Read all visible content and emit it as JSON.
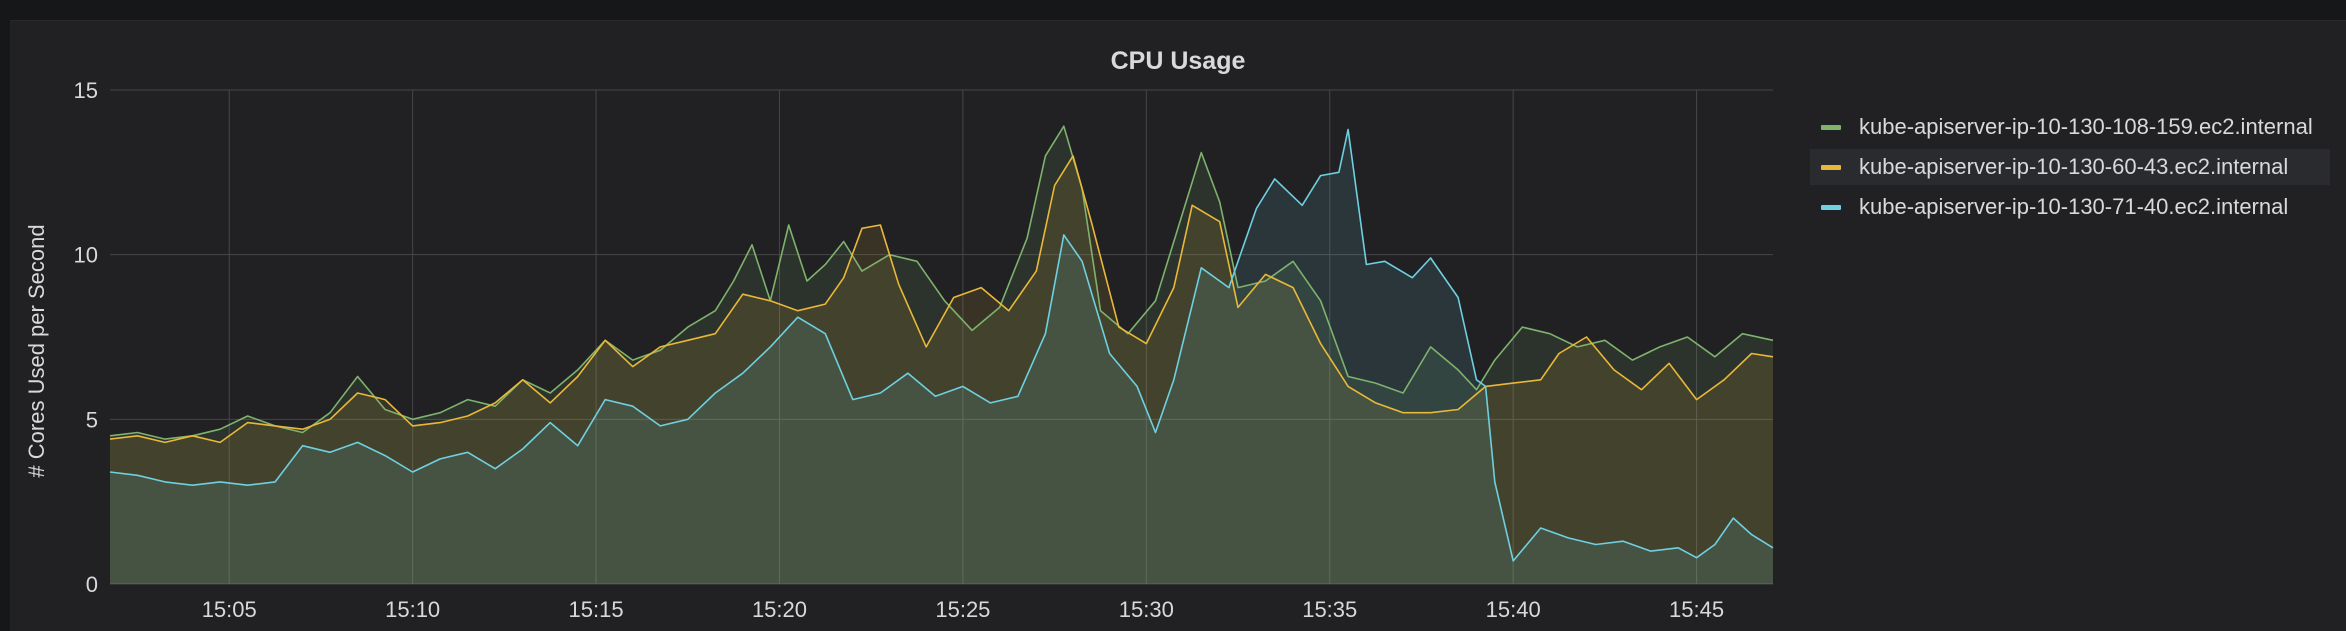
{
  "panel": {
    "title": "CPU Usage"
  },
  "colors": {
    "background": "#212124",
    "grid": "#464649",
    "text": "#d8d9da"
  },
  "chart_data": {
    "type": "area",
    "title": "CPU Usage",
    "xlabel": "",
    "ylabel": "# Cores Used per Second",
    "ylim": [
      0,
      15
    ],
    "yticks": [
      0,
      5,
      10,
      15
    ],
    "xlim": [
      "15:01:45",
      "15:47:05"
    ],
    "xticks": [
      "15:05",
      "15:10",
      "15:15",
      "15:20",
      "15:25",
      "15:30",
      "15:35",
      "15:40",
      "15:45"
    ],
    "grid": true,
    "legend_position": "right",
    "series": [
      {
        "name": "kube-apiserver-ip-10-130-108-159.ec2.internal",
        "color": "#7eb26d",
        "fill": "rgba(126,178,109,0.12)",
        "points": [
          [
            "15:01:45",
            4.5
          ],
          [
            "15:02:30",
            4.6
          ],
          [
            "15:03:15",
            4.4
          ],
          [
            "15:04:00",
            4.5
          ],
          [
            "15:04:45",
            4.7
          ],
          [
            "15:05:30",
            5.1
          ],
          [
            "15:06:15",
            4.8
          ],
          [
            "15:07:00",
            4.6
          ],
          [
            "15:07:45",
            5.2
          ],
          [
            "15:08:30",
            6.3
          ],
          [
            "15:09:15",
            5.3
          ],
          [
            "15:10:00",
            5.0
          ],
          [
            "15:10:45",
            5.2
          ],
          [
            "15:11:30",
            5.6
          ],
          [
            "15:12:15",
            5.4
          ],
          [
            "15:13:00",
            6.2
          ],
          [
            "15:13:45",
            5.8
          ],
          [
            "15:14:30",
            6.5
          ],
          [
            "15:15:15",
            7.4
          ],
          [
            "15:16:00",
            6.8
          ],
          [
            "15:16:45",
            7.1
          ],
          [
            "15:17:30",
            7.8
          ],
          [
            "15:18:15",
            8.3
          ],
          [
            "15:18:45",
            9.2
          ],
          [
            "15:19:15",
            10.3
          ],
          [
            "15:19:45",
            8.6
          ],
          [
            "15:20:15",
            10.9
          ],
          [
            "15:20:45",
            9.2
          ],
          [
            "15:21:15",
            9.7
          ],
          [
            "15:21:45",
            10.4
          ],
          [
            "15:22:15",
            9.5
          ],
          [
            "15:23:00",
            10.0
          ],
          [
            "15:23:45",
            9.8
          ],
          [
            "15:24:30",
            8.6
          ],
          [
            "15:25:15",
            7.7
          ],
          [
            "15:26:00",
            8.4
          ],
          [
            "15:26:45",
            10.5
          ],
          [
            "15:27:15",
            13.0
          ],
          [
            "15:27:45",
            13.9
          ],
          [
            "15:28:15",
            12.0
          ],
          [
            "15:28:45",
            8.3
          ],
          [
            "15:29:30",
            7.6
          ],
          [
            "15:30:15",
            8.6
          ],
          [
            "15:31:00",
            11.3
          ],
          [
            "15:31:30",
            13.1
          ],
          [
            "15:32:00",
            11.6
          ],
          [
            "15:32:30",
            9.0
          ],
          [
            "15:33:15",
            9.2
          ],
          [
            "15:34:00",
            9.8
          ],
          [
            "15:34:45",
            8.6
          ],
          [
            "15:35:30",
            6.3
          ],
          [
            "15:36:15",
            6.1
          ],
          [
            "15:37:00",
            5.8
          ],
          [
            "15:37:45",
            7.2
          ],
          [
            "15:38:30",
            6.5
          ],
          [
            "15:39:00",
            5.9
          ],
          [
            "15:39:30",
            6.8
          ],
          [
            "15:40:15",
            7.8
          ],
          [
            "15:41:00",
            7.6
          ],
          [
            "15:41:45",
            7.2
          ],
          [
            "15:42:30",
            7.4
          ],
          [
            "15:43:15",
            6.8
          ],
          [
            "15:44:00",
            7.2
          ],
          [
            "15:44:45",
            7.5
          ],
          [
            "15:45:30",
            6.9
          ],
          [
            "15:46:15",
            7.6
          ],
          [
            "15:47:05",
            7.4
          ]
        ]
      },
      {
        "name": "kube-apiserver-ip-10-130-60-43.ec2.internal",
        "color": "#eab839",
        "fill": "rgba(234,184,57,0.12)",
        "points": [
          [
            "15:01:45",
            4.4
          ],
          [
            "15:02:30",
            4.5
          ],
          [
            "15:03:15",
            4.3
          ],
          [
            "15:04:00",
            4.5
          ],
          [
            "15:04:45",
            4.3
          ],
          [
            "15:05:30",
            4.9
          ],
          [
            "15:06:15",
            4.8
          ],
          [
            "15:07:00",
            4.7
          ],
          [
            "15:07:45",
            5.0
          ],
          [
            "15:08:30",
            5.8
          ],
          [
            "15:09:15",
            5.6
          ],
          [
            "15:10:00",
            4.8
          ],
          [
            "15:10:45",
            4.9
          ],
          [
            "15:11:30",
            5.1
          ],
          [
            "15:12:15",
            5.5
          ],
          [
            "15:13:00",
            6.2
          ],
          [
            "15:13:45",
            5.5
          ],
          [
            "15:14:30",
            6.3
          ],
          [
            "15:15:15",
            7.4
          ],
          [
            "15:16:00",
            6.6
          ],
          [
            "15:16:45",
            7.2
          ],
          [
            "15:17:30",
            7.4
          ],
          [
            "15:18:15",
            7.6
          ],
          [
            "15:19:00",
            8.8
          ],
          [
            "15:19:45",
            8.6
          ],
          [
            "15:20:30",
            8.3
          ],
          [
            "15:21:15",
            8.5
          ],
          [
            "15:21:45",
            9.3
          ],
          [
            "15:22:15",
            10.8
          ],
          [
            "15:22:45",
            10.9
          ],
          [
            "15:23:15",
            9.1
          ],
          [
            "15:24:00",
            7.2
          ],
          [
            "15:24:45",
            8.7
          ],
          [
            "15:25:30",
            9.0
          ],
          [
            "15:26:15",
            8.3
          ],
          [
            "15:27:00",
            9.5
          ],
          [
            "15:27:30",
            12.1
          ],
          [
            "15:28:00",
            13.0
          ],
          [
            "15:28:30",
            11.0
          ],
          [
            "15:29:15",
            7.8
          ],
          [
            "15:30:00",
            7.3
          ],
          [
            "15:30:45",
            9.0
          ],
          [
            "15:31:15",
            11.5
          ],
          [
            "15:32:00",
            11.0
          ],
          [
            "15:32:30",
            8.4
          ],
          [
            "15:33:15",
            9.4
          ],
          [
            "15:34:00",
            9.0
          ],
          [
            "15:34:45",
            7.3
          ],
          [
            "15:35:30",
            6.0
          ],
          [
            "15:36:15",
            5.5
          ],
          [
            "15:37:00",
            5.2
          ],
          [
            "15:37:45",
            5.2
          ],
          [
            "15:38:30",
            5.3
          ],
          [
            "15:39:15",
            6.0
          ],
          [
            "15:40:00",
            6.1
          ],
          [
            "15:40:45",
            6.2
          ],
          [
            "15:41:15",
            7.0
          ],
          [
            "15:42:00",
            7.5
          ],
          [
            "15:42:45",
            6.5
          ],
          [
            "15:43:30",
            5.9
          ],
          [
            "15:44:15",
            6.7
          ],
          [
            "15:45:00",
            5.6
          ],
          [
            "15:45:45",
            6.2
          ],
          [
            "15:46:30",
            7.0
          ],
          [
            "15:47:05",
            6.9
          ]
        ]
      },
      {
        "name": "kube-apiserver-ip-10-130-71-40.ec2.internal",
        "color": "#6ed0e0",
        "fill": "rgba(110,208,224,0.12)",
        "points": [
          [
            "15:01:45",
            3.4
          ],
          [
            "15:02:30",
            3.3
          ],
          [
            "15:03:15",
            3.1
          ],
          [
            "15:04:00",
            3.0
          ],
          [
            "15:04:45",
            3.1
          ],
          [
            "15:05:30",
            3.0
          ],
          [
            "15:06:15",
            3.1
          ],
          [
            "15:07:00",
            4.2
          ],
          [
            "15:07:45",
            4.0
          ],
          [
            "15:08:30",
            4.3
          ],
          [
            "15:09:15",
            3.9
          ],
          [
            "15:10:00",
            3.4
          ],
          [
            "15:10:45",
            3.8
          ],
          [
            "15:11:30",
            4.0
          ],
          [
            "15:12:15",
            3.5
          ],
          [
            "15:13:00",
            4.1
          ],
          [
            "15:13:45",
            4.9
          ],
          [
            "15:14:30",
            4.2
          ],
          [
            "15:15:15",
            5.6
          ],
          [
            "15:16:00",
            5.4
          ],
          [
            "15:16:45",
            4.8
          ],
          [
            "15:17:30",
            5.0
          ],
          [
            "15:18:15",
            5.8
          ],
          [
            "15:19:00",
            6.4
          ],
          [
            "15:19:45",
            7.2
          ],
          [
            "15:20:30",
            8.1
          ],
          [
            "15:21:15",
            7.6
          ],
          [
            "15:22:00",
            5.6
          ],
          [
            "15:22:45",
            5.8
          ],
          [
            "15:23:30",
            6.4
          ],
          [
            "15:24:15",
            5.7
          ],
          [
            "15:25:00",
            6.0
          ],
          [
            "15:25:45",
            5.5
          ],
          [
            "15:26:30",
            5.7
          ],
          [
            "15:27:15",
            7.6
          ],
          [
            "15:27:45",
            10.6
          ],
          [
            "15:28:15",
            9.8
          ],
          [
            "15:29:00",
            7.0
          ],
          [
            "15:29:45",
            6.0
          ],
          [
            "15:30:15",
            4.6
          ],
          [
            "15:30:45",
            6.2
          ],
          [
            "15:31:30",
            9.6
          ],
          [
            "15:32:15",
            9.0
          ],
          [
            "15:33:00",
            11.4
          ],
          [
            "15:33:30",
            12.3
          ],
          [
            "15:34:15",
            11.5
          ],
          [
            "15:34:45",
            12.4
          ],
          [
            "15:35:15",
            12.5
          ],
          [
            "15:35:30",
            13.8
          ],
          [
            "15:36:00",
            9.7
          ],
          [
            "15:36:30",
            9.8
          ],
          [
            "15:37:15",
            9.3
          ],
          [
            "15:37:45",
            9.9
          ],
          [
            "15:38:30",
            8.7
          ],
          [
            "15:39:00",
            6.2
          ],
          [
            "15:39:15",
            6.0
          ],
          [
            "15:39:30",
            3.1
          ],
          [
            "15:40:00",
            0.7
          ],
          [
            "15:40:45",
            1.7
          ],
          [
            "15:41:30",
            1.4
          ],
          [
            "15:42:15",
            1.2
          ],
          [
            "15:43:00",
            1.3
          ],
          [
            "15:43:45",
            1.0
          ],
          [
            "15:44:30",
            1.1
          ],
          [
            "15:45:00",
            0.8
          ],
          [
            "15:45:30",
            1.2
          ],
          [
            "15:46:00",
            2.0
          ],
          [
            "15:46:30",
            1.5
          ],
          [
            "15:47:05",
            1.1
          ]
        ]
      }
    ]
  }
}
